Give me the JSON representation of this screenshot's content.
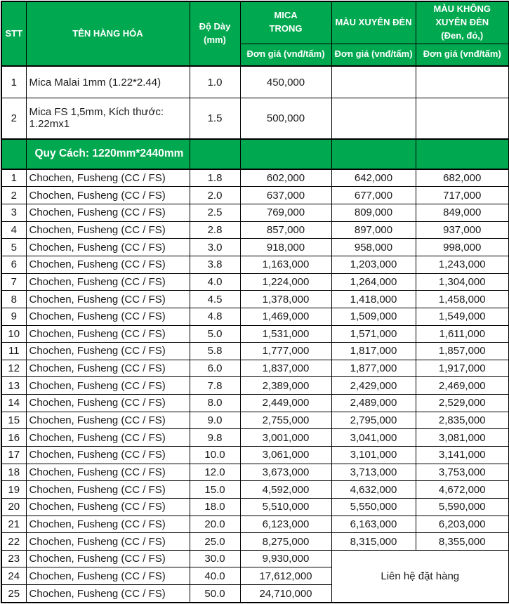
{
  "colors": {
    "header_green": "#00A94F",
    "header_text": "#ffffff",
    "body_text": "#1a1a1a",
    "border": "#000000"
  },
  "header": {
    "stt": "STT",
    "product": "TÊN HÀNG HÓA",
    "thickness": "Độ Dày\n(mm)",
    "mica_trong": "MICA\nTRONG",
    "mau_xuyen_den": "MÀU XUYÊN ĐÈN",
    "mau_khong_xuyen_den": "MÀU KHÔNG\nXUYÊN ĐÈN\n(Đen, đỏ,)",
    "unit_price": "Đơn giá (vnđ/tấm)"
  },
  "intro_rows": [
    {
      "stt": "1",
      "name": "Mica Malai 1mm (1.22*2.44)",
      "thickness": "1.0",
      "price1": "450,000",
      "price2": "",
      "price3": ""
    },
    {
      "stt": "2",
      "name": "Mica FS 1,5mm, Kích thước: 1.22mx1",
      "thickness": "1.5",
      "price1": "500,000",
      "price2": "",
      "price3": ""
    }
  ],
  "section_label": "Quy Cách: 1220mm*2440mm",
  "contact_note": "Liên hệ đặt hàng",
  "rows": [
    {
      "stt": "1",
      "name": "Chochen, Fusheng (CC / FS)",
      "thickness": "1.8",
      "price1": "602,000",
      "price2": "642,000",
      "price3": "682,000"
    },
    {
      "stt": "2",
      "name": "Chochen, Fusheng (CC / FS)",
      "thickness": "2.0",
      "price1": "637,000",
      "price2": "677,000",
      "price3": "717,000"
    },
    {
      "stt": "3",
      "name": "Chochen, Fusheng (CC / FS)",
      "thickness": "2.5",
      "price1": "769,000",
      "price2": "809,000",
      "price3": "849,000"
    },
    {
      "stt": "4",
      "name": "Chochen, Fusheng (CC / FS)",
      "thickness": "2.8",
      "price1": "857,000",
      "price2": "897,000",
      "price3": "937,000"
    },
    {
      "stt": "5",
      "name": "Chochen, Fusheng (CC / FS)",
      "thickness": "3.0",
      "price1": "918,000",
      "price2": "958,000",
      "price3": "998,000"
    },
    {
      "stt": "6",
      "name": "Chochen, Fusheng (CC / FS)",
      "thickness": "3.8",
      "price1": "1,163,000",
      "price2": "1,203,000",
      "price3": "1,243,000"
    },
    {
      "stt": "7",
      "name": "Chochen, Fusheng (CC / FS)",
      "thickness": "4.0",
      "price1": "1,224,000",
      "price2": "1,264,000",
      "price3": "1,304,000"
    },
    {
      "stt": "8",
      "name": "Chochen, Fusheng (CC / FS)",
      "thickness": "4.5",
      "price1": "1,378,000",
      "price2": "1,418,000",
      "price3": "1,458,000"
    },
    {
      "stt": "9",
      "name": "Chochen, Fusheng (CC / FS)",
      "thickness": "4.8",
      "price1": "1,469,000",
      "price2": "1,509,000",
      "price3": "1,549,000"
    },
    {
      "stt": "10",
      "name": "Chochen, Fusheng (CC / FS)",
      "thickness": "5.0",
      "price1": "1,531,000",
      "price2": "1,571,000",
      "price3": "1,611,000"
    },
    {
      "stt": "11",
      "name": "Chochen, Fusheng (CC / FS)",
      "thickness": "5.8",
      "price1": "1,777,000",
      "price2": "1,817,000",
      "price3": "1,857,000"
    },
    {
      "stt": "12",
      "name": "Chochen, Fusheng (CC / FS)",
      "thickness": "6.0",
      "price1": "1,837,000",
      "price2": "1,877,000",
      "price3": "1,917,000"
    },
    {
      "stt": "13",
      "name": "Chochen, Fusheng (CC / FS)",
      "thickness": "7.8",
      "price1": "2,389,000",
      "price2": "2,429,000",
      "price3": "2,469,000"
    },
    {
      "stt": "14",
      "name": "Chochen, Fusheng (CC / FS)",
      "thickness": "8.0",
      "price1": "2,449,000",
      "price2": "2,489,000",
      "price3": "2,529,000"
    },
    {
      "stt": "15",
      "name": "Chochen, Fusheng (CC / FS)",
      "thickness": "9.0",
      "price1": "2,755,000",
      "price2": "2,795,000",
      "price3": "2,835,000"
    },
    {
      "stt": "16",
      "name": "Chochen, Fusheng (CC / FS)",
      "thickness": "9.8",
      "price1": "3,001,000",
      "price2": "3,041,000",
      "price3": "3,081,000"
    },
    {
      "stt": "17",
      "name": "Chochen, Fusheng (CC / FS)",
      "thickness": "10.0",
      "price1": "3,061,000",
      "price2": "3,101,000",
      "price3": "3,141,000"
    },
    {
      "stt": "18",
      "name": "Chochen, Fusheng (CC / FS)",
      "thickness": "12.0",
      "price1": "3,673,000",
      "price2": "3,713,000",
      "price3": "3,753,000"
    },
    {
      "stt": "19",
      "name": "Chochen, Fusheng (CC / FS)",
      "thickness": "15.0",
      "price1": "4,592,000",
      "price2": "4,632,000",
      "price3": "4,672,000"
    },
    {
      "stt": "20",
      "name": "Chochen, Fusheng (CC / FS)",
      "thickness": "18.0",
      "price1": "5,510,000",
      "price2": "5,550,000",
      "price3": "5,590,000"
    },
    {
      "stt": "21",
      "name": "Chochen, Fusheng (CC / FS)",
      "thickness": "20.0",
      "price1": "6,123,000",
      "price2": "6,163,000",
      "price3": "6,203,000"
    },
    {
      "stt": "22",
      "name": "Chochen, Fusheng (CC / FS)",
      "thickness": "25.0",
      "price1": "8,275,000",
      "price2": "8,315,000",
      "price3": "8,355,000"
    },
    {
      "stt": "23",
      "name": "Chochen, Fusheng (CC / FS)",
      "thickness": "30.0",
      "price1": "9,930,000"
    },
    {
      "stt": "24",
      "name": "Chochen, Fusheng (CC / FS)",
      "thickness": "40.0",
      "price1": "17,612,000"
    },
    {
      "stt": "25",
      "name": "Chochen, Fusheng (CC / FS)",
      "thickness": "50.0",
      "price1": "24,710,000"
    }
  ]
}
